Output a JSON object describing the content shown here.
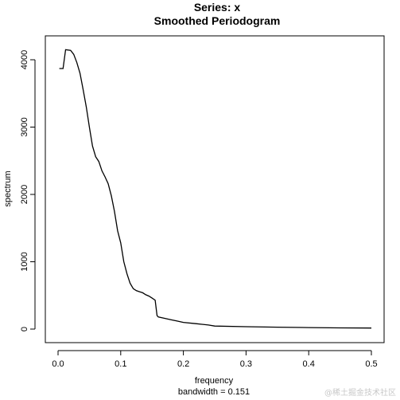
{
  "chart_data": {
    "type": "line",
    "title": "Series: x",
    "subtitle": "Smoothed Periodogram",
    "xlabel": "frequency",
    "xlabel2": "bandwidth = 0.151",
    "ylabel": "spectrum",
    "xlim": [
      0,
      0.5
    ],
    "ylim": [
      0,
      4150
    ],
    "xticks": [
      "0.0",
      "0.1",
      "0.2",
      "0.3",
      "0.4",
      "0.5"
    ],
    "yticks": [
      "0",
      "1000",
      "2000",
      "3000",
      "4000"
    ],
    "grid": false,
    "series": [
      {
        "x": [
          0.002,
          0.008,
          0.012,
          0.02,
          0.025,
          0.03,
          0.035,
          0.04,
          0.045,
          0.05,
          0.055,
          0.06,
          0.065,
          0.07,
          0.075,
          0.08,
          0.085,
          0.09,
          0.095,
          0.1,
          0.105,
          0.11,
          0.115,
          0.12,
          0.125,
          0.13,
          0.135,
          0.14,
          0.145,
          0.15,
          0.155,
          0.158,
          0.16,
          0.17,
          0.18,
          0.19,
          0.2,
          0.22,
          0.24,
          0.25,
          0.3,
          0.35,
          0.4,
          0.45,
          0.5
        ],
        "y": [
          3870,
          3870,
          4150,
          4140,
          4080,
          3960,
          3800,
          3560,
          3300,
          3000,
          2720,
          2560,
          2490,
          2350,
          2260,
          2160,
          1980,
          1750,
          1460,
          1280,
          1000,
          820,
          680,
          600,
          570,
          555,
          540,
          510,
          490,
          460,
          430,
          200,
          180,
          160,
          140,
          120,
          100,
          80,
          60,
          45,
          35,
          28,
          22,
          18,
          15
        ]
      }
    ]
  },
  "watermark": "@稀土掘金技术社区"
}
